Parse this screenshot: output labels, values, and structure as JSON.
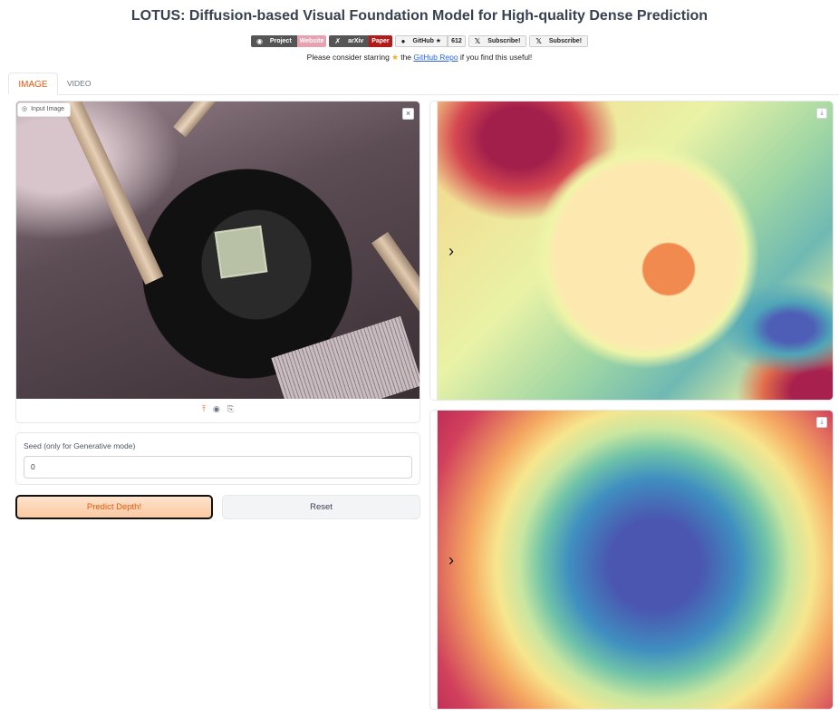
{
  "header": {
    "title": "LOTUS: Diffusion-based Visual Foundation Model for High-quality Dense Prediction",
    "badges": [
      {
        "left": "Project",
        "right": "Website"
      },
      {
        "left": "arXiv",
        "right": "Paper"
      },
      {
        "left": "GitHub ★",
        "right": "612"
      },
      {
        "left": "Subscribe!"
      },
      {
        "left": "Subscribe!"
      }
    ],
    "starring_prefix": "Please consider starring",
    "starring_link": "GitHub Repo",
    "starring_suffix": "if you find this useful!"
  },
  "tabs": [
    {
      "label": "IMAGE",
      "active": true
    },
    {
      "label": "VIDEO",
      "active": false
    }
  ],
  "input_image": {
    "label": "Input Image",
    "close": "×"
  },
  "seed": {
    "label": "Seed (only for Generative mode)",
    "value": "0"
  },
  "buttons": {
    "predict": "Predict Depth!",
    "reset": "Reset"
  },
  "colors": {
    "accent": "#ea580c",
    "predict_bg": "#fbc9a1"
  }
}
